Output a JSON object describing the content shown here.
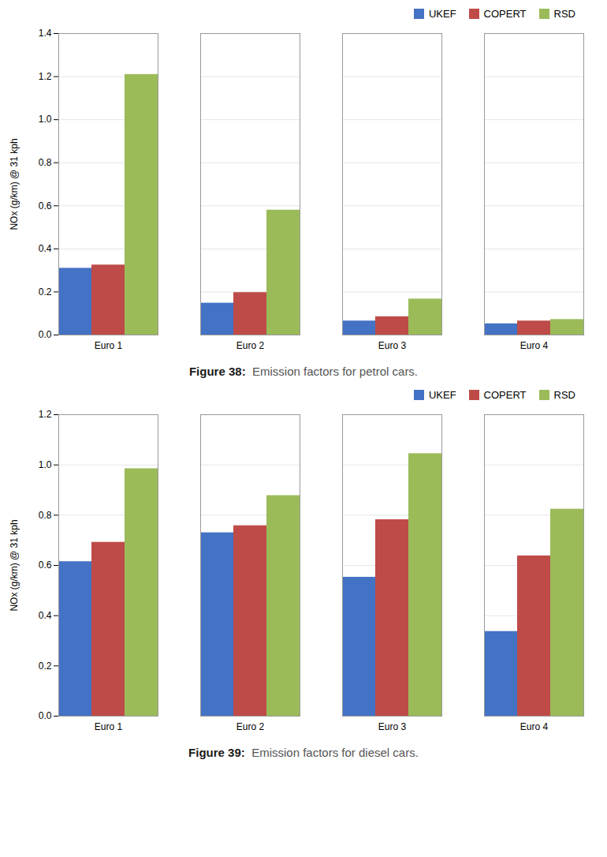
{
  "chart_data": [
    {
      "type": "bar",
      "caption_label": "Figure 38:",
      "caption": "Emission factors for petrol cars.",
      "ylabel": "NOx (g/km) @ 31 kph",
      "categories": [
        "Euro 1",
        "Euro 2",
        "Euro 3",
        "Euro 4"
      ],
      "series": [
        {
          "name": "UKEF",
          "color": "#4472C4",
          "values": [
            0.31,
            0.148,
            0.065,
            0.052
          ]
        },
        {
          "name": "COPERT",
          "color": "#BE4B48",
          "values": [
            0.325,
            0.197,
            0.085,
            0.065
          ]
        },
        {
          "name": "RSD",
          "color": "#9BBB59",
          "values": [
            1.21,
            0.58,
            0.167,
            0.072
          ]
        }
      ],
      "ylim": [
        0,
        1.4
      ],
      "yticks": [
        {
          "value": 0,
          "label": "0.0"
        },
        0.2,
        0.4,
        0.6,
        0.8,
        {
          "value": 1.0,
          "label": "1.0"
        },
        1.2,
        1.4
      ],
      "grid": true,
      "legend": "upper right"
    },
    {
      "type": "bar",
      "caption_label": "Figure 39:",
      "caption": "Emission factors for diesel cars.",
      "ylabel": "NOx (g/km) @ 31 kph",
      "categories": [
        "Euro 1",
        "Euro 2",
        "Euro 3",
        "Euro 4"
      ],
      "series": [
        {
          "name": "UKEF",
          "color": "#4472C4",
          "values": [
            0.615,
            0.73,
            0.553,
            0.337
          ]
        },
        {
          "name": "COPERT",
          "color": "#BE4B48",
          "values": [
            0.692,
            0.758,
            0.782,
            0.638
          ]
        },
        {
          "name": "RSD",
          "color": "#9BBB59",
          "values": [
            0.985,
            0.878,
            1.045,
            0.824
          ]
        }
      ],
      "ylim": [
        0,
        1.2
      ],
      "yticks": [
        {
          "value": 0,
          "label": "0.0"
        },
        0.2,
        0.4,
        0.6,
        0.8,
        {
          "value": 1.0,
          "label": "1.0"
        },
        1.2
      ],
      "grid": true,
      "legend": "upper right"
    }
  ]
}
